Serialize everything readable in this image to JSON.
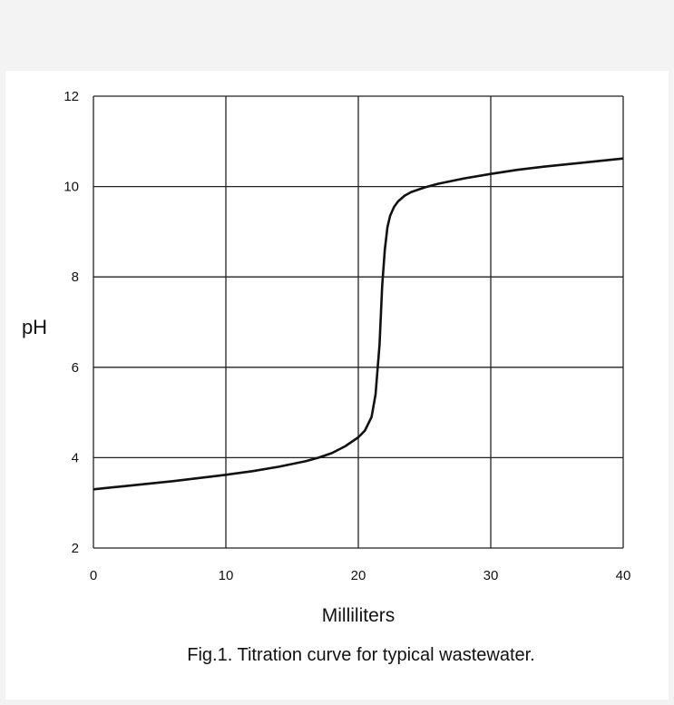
{
  "chart_data": {
    "type": "line",
    "title": "",
    "caption": "Fig.1. Titration curve for typical wastewater.",
    "xlabel": "Milliliters",
    "ylabel": "pH",
    "xlim": [
      0,
      40
    ],
    "ylim": [
      2,
      12
    ],
    "xticks": [
      "0",
      "10",
      "20",
      "30",
      "40"
    ],
    "yticks": [
      "2",
      "4",
      "6",
      "8",
      "10",
      "12"
    ],
    "grid": true,
    "legend": "none",
    "line_color": "#111111",
    "series": [
      {
        "x": [
          0,
          2,
          4,
          6,
          8,
          10,
          12,
          14,
          16,
          17,
          18,
          19,
          20,
          20.5,
          21,
          21.3,
          21.6,
          21.8,
          22.0,
          22.2,
          22.4,
          22.7,
          23,
          23.5,
          24,
          25,
          26,
          28,
          30,
          32,
          34,
          36,
          38,
          40
        ],
        "y": [
          3.3,
          3.36,
          3.42,
          3.48,
          3.55,
          3.62,
          3.7,
          3.8,
          3.92,
          4.0,
          4.1,
          4.25,
          4.45,
          4.6,
          4.9,
          5.4,
          6.5,
          7.8,
          8.6,
          9.1,
          9.35,
          9.55,
          9.67,
          9.8,
          9.88,
          9.98,
          10.06,
          10.18,
          10.28,
          10.37,
          10.44,
          10.5,
          10.56,
          10.62
        ]
      }
    ]
  }
}
